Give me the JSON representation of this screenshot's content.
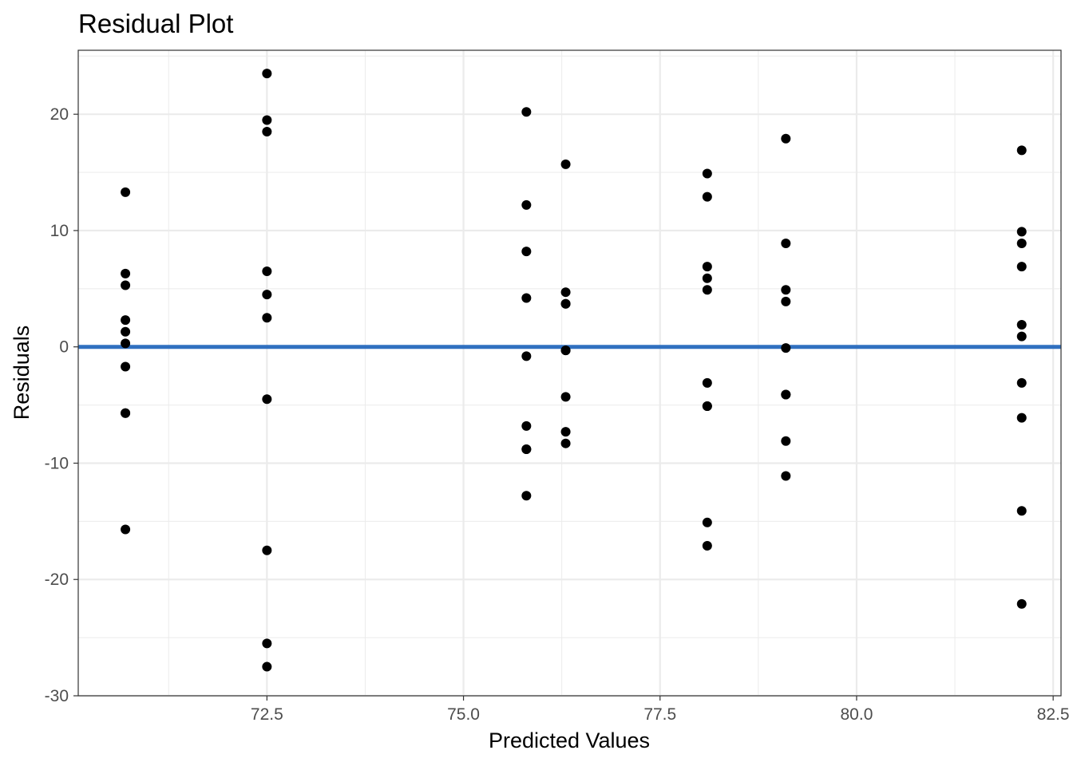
{
  "chart_data": {
    "type": "scatter",
    "title": "Residual Plot",
    "xlabel": "Predicted Values",
    "ylabel": "Residuals",
    "xlim": [
      70.1,
      82.6
    ],
    "ylim": [
      -30,
      25.5
    ],
    "x_ticks": [
      72.5,
      75.0,
      77.5,
      80.0,
      82.5
    ],
    "x_tick_labels": [
      "72.5",
      "75.0",
      "77.5",
      "80.0",
      "82.5"
    ],
    "y_ticks": [
      -30,
      -20,
      -10,
      0,
      10,
      20
    ],
    "y_tick_labels": [
      "-30",
      "-20",
      "-10",
      "0",
      "10",
      "20"
    ],
    "x_minor_ticks": [
      71.25,
      73.75,
      76.25,
      78.75,
      81.25
    ],
    "y_minor_ticks": [
      -25,
      -15,
      -5,
      5,
      15,
      25
    ],
    "grid": true,
    "reference_line": {
      "y": 0,
      "color": "#3070c0"
    },
    "point_color": "#000000",
    "points": [
      {
        "x": 70.7,
        "y": 13.3
      },
      {
        "x": 70.7,
        "y": 6.3
      },
      {
        "x": 70.7,
        "y": 5.3
      },
      {
        "x": 70.7,
        "y": 2.3
      },
      {
        "x": 70.7,
        "y": 1.3
      },
      {
        "x": 70.7,
        "y": 0.3
      },
      {
        "x": 70.7,
        "y": -1.7
      },
      {
        "x": 70.7,
        "y": -5.7
      },
      {
        "x": 70.7,
        "y": -5.7
      },
      {
        "x": 70.7,
        "y": -15.7
      },
      {
        "x": 72.5,
        "y": 23.5
      },
      {
        "x": 72.5,
        "y": 19.5
      },
      {
        "x": 72.5,
        "y": 18.5
      },
      {
        "x": 72.5,
        "y": 6.5
      },
      {
        "x": 72.5,
        "y": 4.5
      },
      {
        "x": 72.5,
        "y": 2.5
      },
      {
        "x": 72.5,
        "y": -4.5
      },
      {
        "x": 72.5,
        "y": -17.5
      },
      {
        "x": 72.5,
        "y": -25.5
      },
      {
        "x": 72.5,
        "y": -27.5
      },
      {
        "x": 75.8,
        "y": 20.2
      },
      {
        "x": 75.8,
        "y": 12.2
      },
      {
        "x": 75.8,
        "y": 8.2
      },
      {
        "x": 75.8,
        "y": 4.2
      },
      {
        "x": 75.8,
        "y": -0.8
      },
      {
        "x": 75.8,
        "y": -6.8
      },
      {
        "x": 75.8,
        "y": -8.8
      },
      {
        "x": 75.8,
        "y": -8.8
      },
      {
        "x": 75.8,
        "y": -12.8
      },
      {
        "x": 76.3,
        "y": 15.7
      },
      {
        "x": 76.3,
        "y": 4.7
      },
      {
        "x": 76.3,
        "y": 3.7
      },
      {
        "x": 76.3,
        "y": 3.7
      },
      {
        "x": 76.3,
        "y": -0.3
      },
      {
        "x": 76.3,
        "y": -0.3
      },
      {
        "x": 76.3,
        "y": -4.3
      },
      {
        "x": 76.3,
        "y": -7.3
      },
      {
        "x": 76.3,
        "y": -8.3
      },
      {
        "x": 78.1,
        "y": 14.9
      },
      {
        "x": 78.1,
        "y": 12.9
      },
      {
        "x": 78.1,
        "y": 6.9
      },
      {
        "x": 78.1,
        "y": 5.9
      },
      {
        "x": 78.1,
        "y": 4.9
      },
      {
        "x": 78.1,
        "y": -3.1
      },
      {
        "x": 78.1,
        "y": -5.1
      },
      {
        "x": 78.1,
        "y": -5.1
      },
      {
        "x": 78.1,
        "y": -15.1
      },
      {
        "x": 78.1,
        "y": -17.1
      },
      {
        "x": 79.1,
        "y": 17.9
      },
      {
        "x": 79.1,
        "y": 8.9
      },
      {
        "x": 79.1,
        "y": 4.9
      },
      {
        "x": 79.1,
        "y": 3.9
      },
      {
        "x": 79.1,
        "y": -0.1
      },
      {
        "x": 79.1,
        "y": -4.1
      },
      {
        "x": 79.1,
        "y": -4.1
      },
      {
        "x": 79.1,
        "y": -8.1
      },
      {
        "x": 79.1,
        "y": -11.1
      },
      {
        "x": 82.1,
        "y": 16.9
      },
      {
        "x": 82.1,
        "y": 9.9
      },
      {
        "x": 82.1,
        "y": 8.9
      },
      {
        "x": 82.1,
        "y": 6.9
      },
      {
        "x": 82.1,
        "y": 1.9
      },
      {
        "x": 82.1,
        "y": 0.9
      },
      {
        "x": 82.1,
        "y": -3.1
      },
      {
        "x": 82.1,
        "y": -6.1
      },
      {
        "x": 82.1,
        "y": -14.1
      },
      {
        "x": 82.1,
        "y": -22.1
      }
    ]
  }
}
